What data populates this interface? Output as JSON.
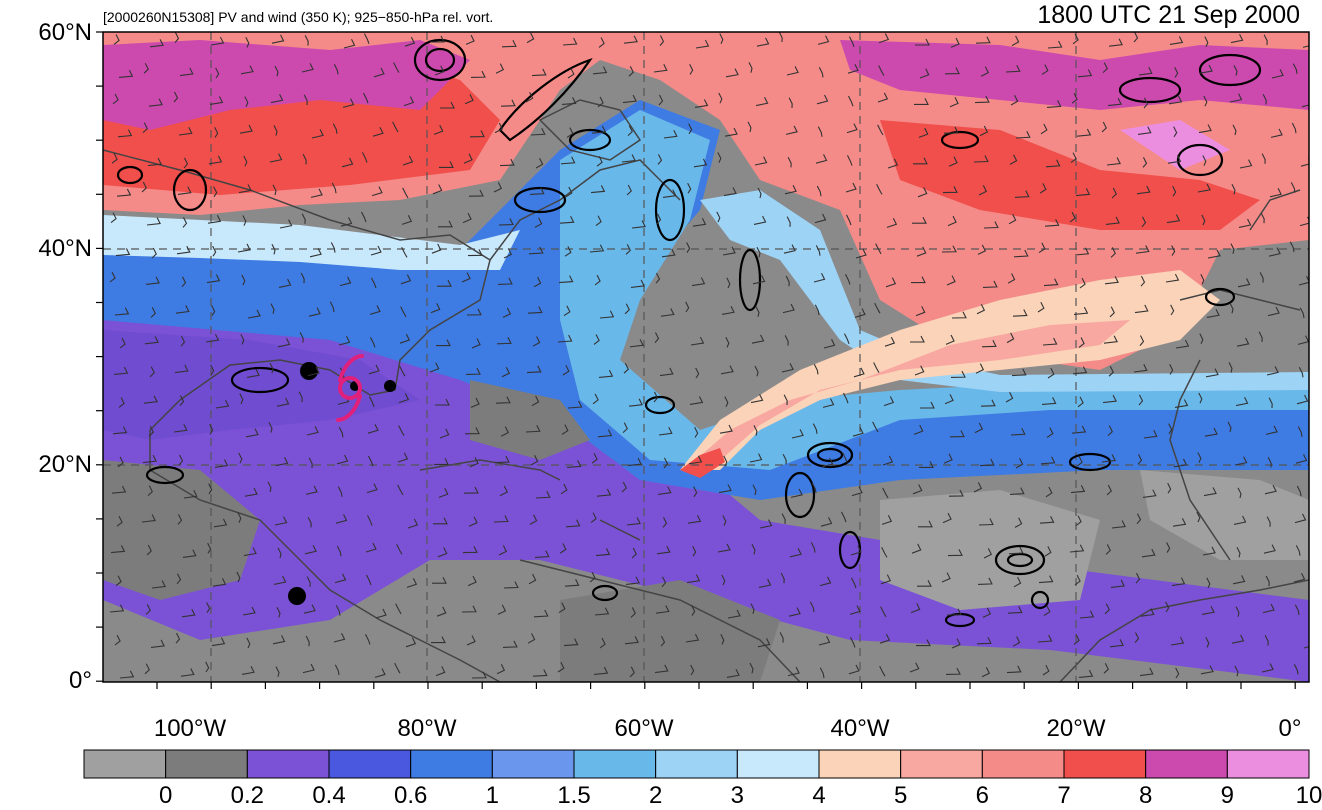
{
  "header": {
    "left_caption": "[2000260N15308] PV and wind (350 K); 925−850-hPa rel. vort.",
    "right_caption": "1800 UTC 21 Sep 2000"
  },
  "axes": {
    "lat_labels": [
      "60°N",
      "40°N",
      "20°N",
      "0°"
    ],
    "lon_labels": [
      "100°W",
      "80°W",
      "60°W",
      "40°W",
      "20°W",
      "0°"
    ]
  },
  "colorbar": {
    "levels": [
      "0",
      "0.2",
      "0.4",
      "0.6",
      "1",
      "1.5",
      "2",
      "3",
      "4",
      "5",
      "6",
      "7",
      "8",
      "9",
      "10"
    ],
    "colors": [
      "#a0a0a0",
      "#7c7c7c",
      "#7b52d6",
      "#4a58e0",
      "#3e7be3",
      "#6a96ee",
      "#69b8ea",
      "#9dd3f5",
      "#c8e8fb",
      "#fbd3b8",
      "#f8a8a0",
      "#f58b88",
      "#f04f4c",
      "#cc4aae",
      "#ec8ee0"
    ]
  },
  "map": {
    "storm_symbol_color": "#e0207a",
    "grid_style": "dashed",
    "contour_color": "#000000",
    "coast_color": "#444444"
  }
}
